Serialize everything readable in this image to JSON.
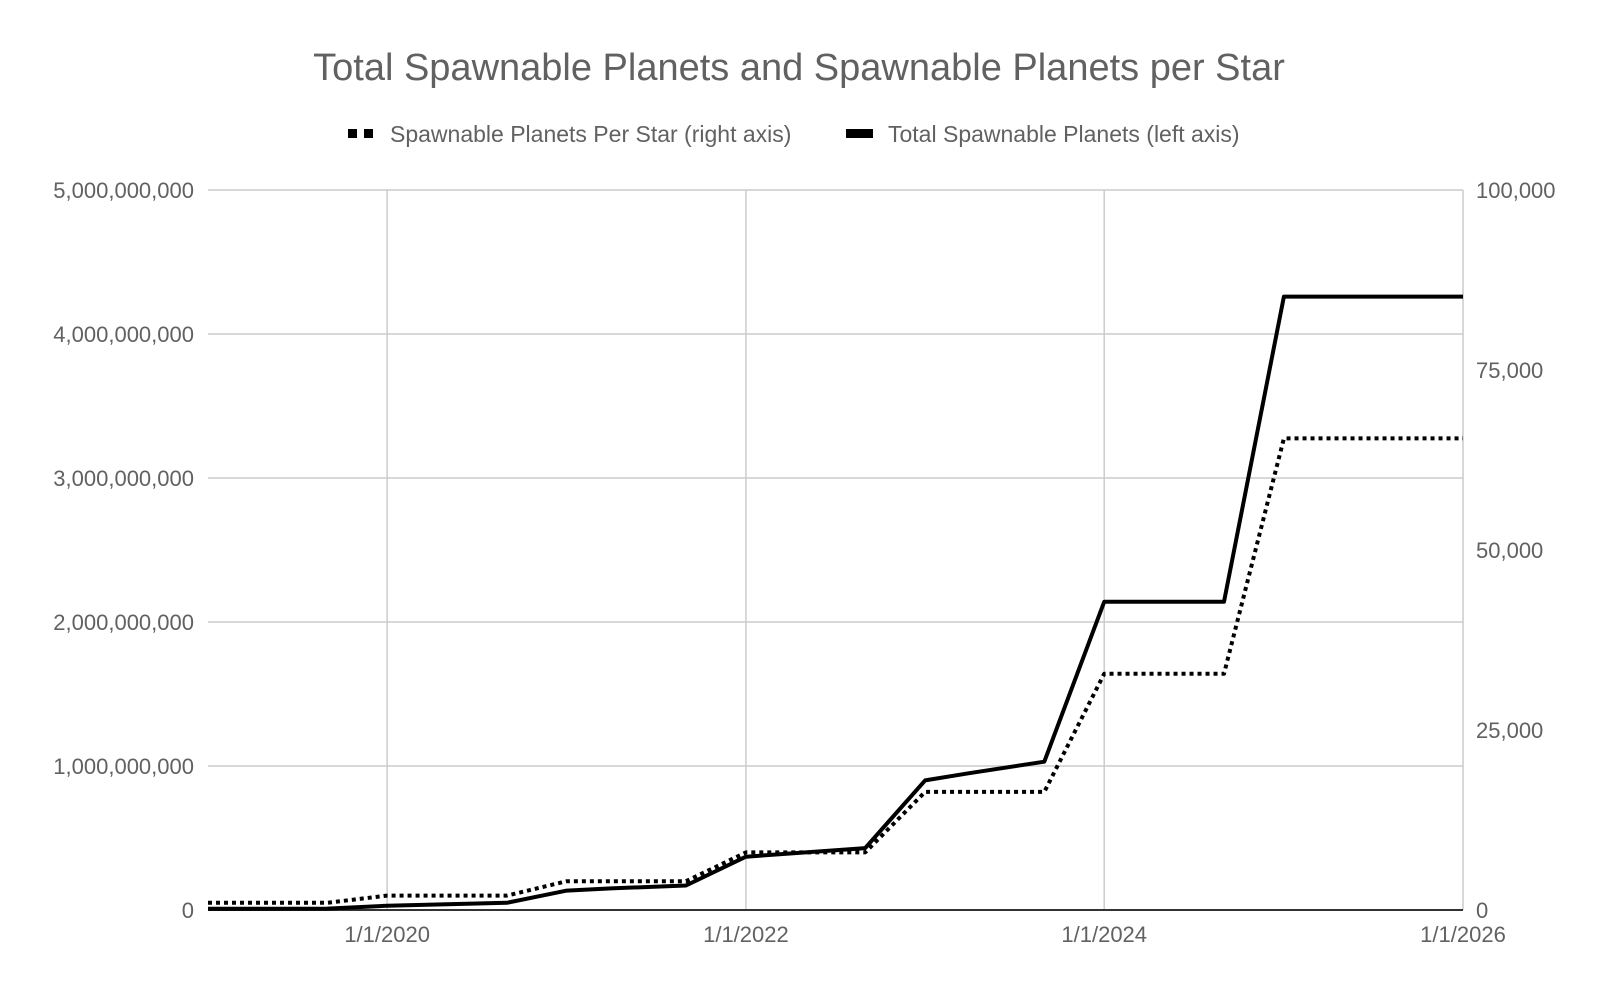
{
  "chart_data": {
    "type": "line",
    "title": "Total Spawnable Planets and Spawnable Planets per Star",
    "legend_position": "top",
    "grid": true,
    "x_axis": {
      "type": "date",
      "range": [
        "2019-01-01",
        "2026-01-01"
      ],
      "ticks": [
        "2020-01-01",
        "2022-01-01",
        "2024-01-01",
        "2026-01-01"
      ],
      "tick_labels": [
        "1/1/2020",
        "1/1/2022",
        "1/1/2024",
        "1/1/2026"
      ]
    },
    "y_axis_left": {
      "range": [
        0,
        5000000000
      ],
      "ticks": [
        0,
        1000000000,
        2000000000,
        3000000000,
        4000000000,
        5000000000
      ],
      "tick_labels": [
        "0",
        "1,000,000,000",
        "2,000,000,000",
        "3,000,000,000",
        "4,000,000,000",
        "5,000,000,000"
      ]
    },
    "y_axis_right": {
      "range": [
        0,
        100000
      ],
      "ticks": [
        0,
        25000,
        50000,
        75000,
        100000
      ],
      "tick_labels": [
        "0",
        "25,000",
        "50,000",
        "75,000",
        "100,000"
      ]
    },
    "series": [
      {
        "name": "Spawnable Planets Per Star (right axis)",
        "axis": "right",
        "style": "dotted",
        "color": "#000000",
        "points": [
          {
            "x": "2019-01-01",
            "y": 1000
          },
          {
            "x": "2019-09-01",
            "y": 1000
          },
          {
            "x": "2020-01-01",
            "y": 2000
          },
          {
            "x": "2020-09-01",
            "y": 2000
          },
          {
            "x": "2021-01-01",
            "y": 4000
          },
          {
            "x": "2021-09-01",
            "y": 4000
          },
          {
            "x": "2022-01-01",
            "y": 8000
          },
          {
            "x": "2022-09-01",
            "y": 8000
          },
          {
            "x": "2023-01-01",
            "y": 16400
          },
          {
            "x": "2023-09-01",
            "y": 16400
          },
          {
            "x": "2024-01-01",
            "y": 32800
          },
          {
            "x": "2024-09-01",
            "y": 32800
          },
          {
            "x": "2025-01-01",
            "y": 65500
          },
          {
            "x": "2026-01-01",
            "y": 65500
          }
        ]
      },
      {
        "name": "Total Spawnable Planets (left axis)",
        "axis": "left",
        "style": "solid",
        "color": "#000000",
        "points": [
          {
            "x": "2019-01-01",
            "y": 8000000
          },
          {
            "x": "2019-09-01",
            "y": 10000000
          },
          {
            "x": "2020-01-01",
            "y": 30000000
          },
          {
            "x": "2020-09-01",
            "y": 50000000
          },
          {
            "x": "2021-01-01",
            "y": 135000000
          },
          {
            "x": "2021-04-01",
            "y": 150000000
          },
          {
            "x": "2021-09-01",
            "y": 170000000
          },
          {
            "x": "2022-01-01",
            "y": 370000000
          },
          {
            "x": "2022-09-01",
            "y": 430000000
          },
          {
            "x": "2023-01-01",
            "y": 900000000
          },
          {
            "x": "2023-04-01",
            "y": 950000000
          },
          {
            "x": "2023-09-01",
            "y": 1030000000
          },
          {
            "x": "2024-01-01",
            "y": 2140000000
          },
          {
            "x": "2024-09-01",
            "y": 2140000000
          },
          {
            "x": "2025-01-01",
            "y": 4260000000
          },
          {
            "x": "2026-01-01",
            "y": 4260000000
          }
        ]
      }
    ]
  }
}
